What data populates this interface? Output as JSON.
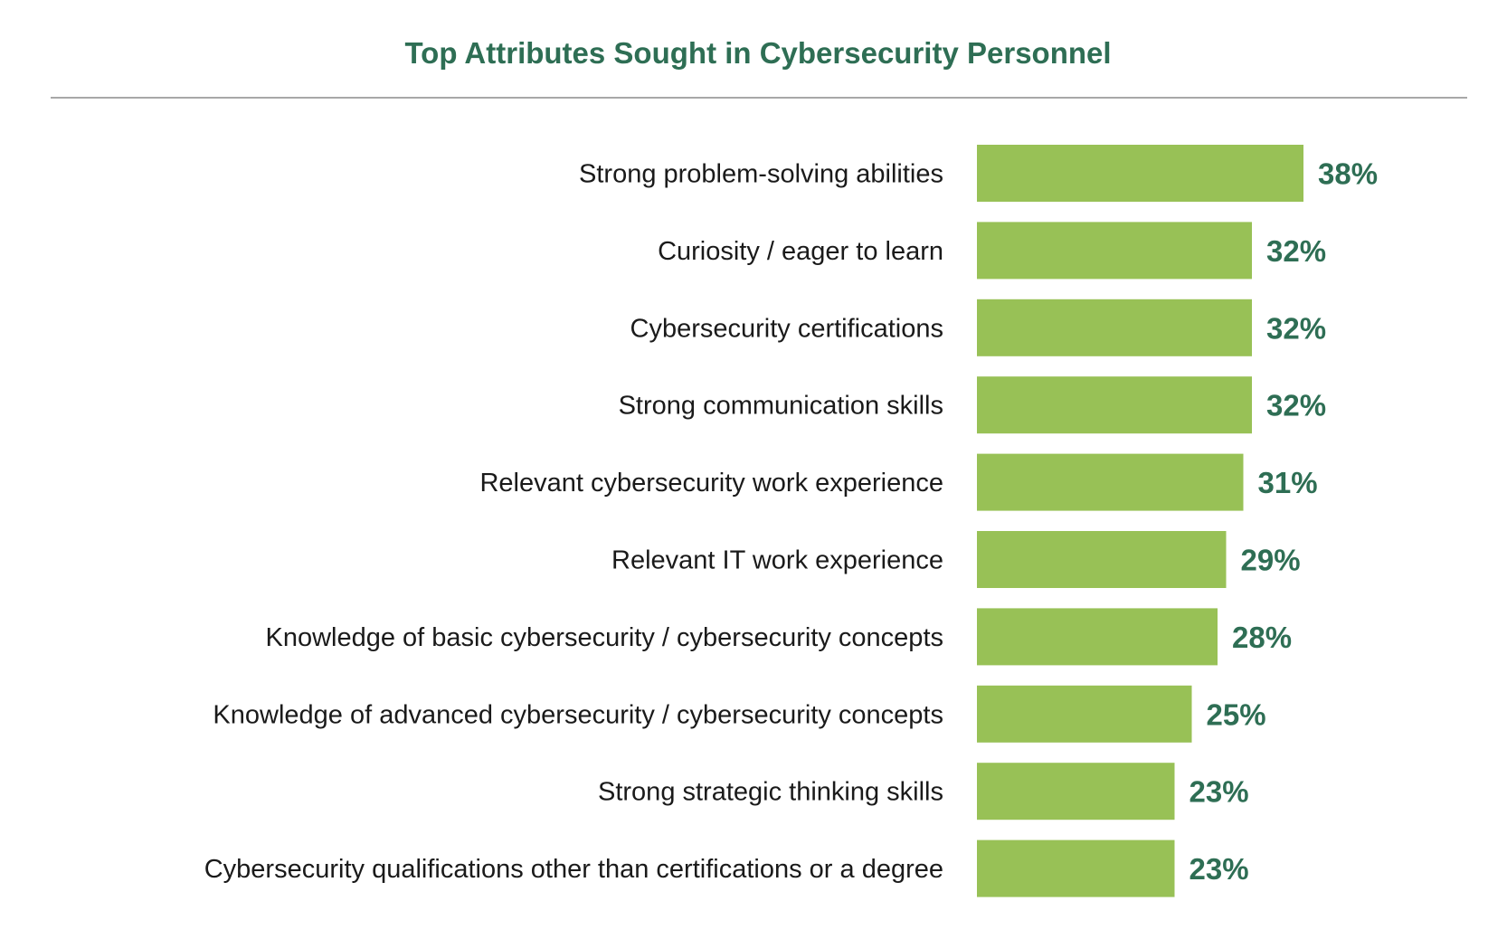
{
  "chart_data": {
    "type": "bar",
    "orientation": "horizontal",
    "title": "Top Attributes Sought in Cybersecurity Personnel",
    "categories": [
      "Strong problem-solving abilities",
      "Curiosity / eager to learn",
      "Cybersecurity certifications",
      "Strong communication skills",
      "Relevant cybersecurity work experience",
      "Relevant IT work experience",
      "Knowledge of basic cybersecurity / cybersecurity concepts",
      "Knowledge of advanced cybersecurity / cybersecurity concepts",
      "Strong strategic thinking skills",
      "Cybersecurity qualifications other than certifications or a degree"
    ],
    "values": [
      38,
      32,
      32,
      32,
      31,
      29,
      28,
      25,
      23,
      23
    ],
    "data_labels": [
      "38%",
      "32%",
      "32%",
      "32%",
      "31%",
      "29%",
      "28%",
      "25%",
      "23%",
      "23%"
    ],
    "unit": "%",
    "grid": false,
    "legend": "none",
    "colors": {
      "bar": "#98c156",
      "title": "#2e6e54",
      "data_label": "#2e6e54"
    }
  }
}
